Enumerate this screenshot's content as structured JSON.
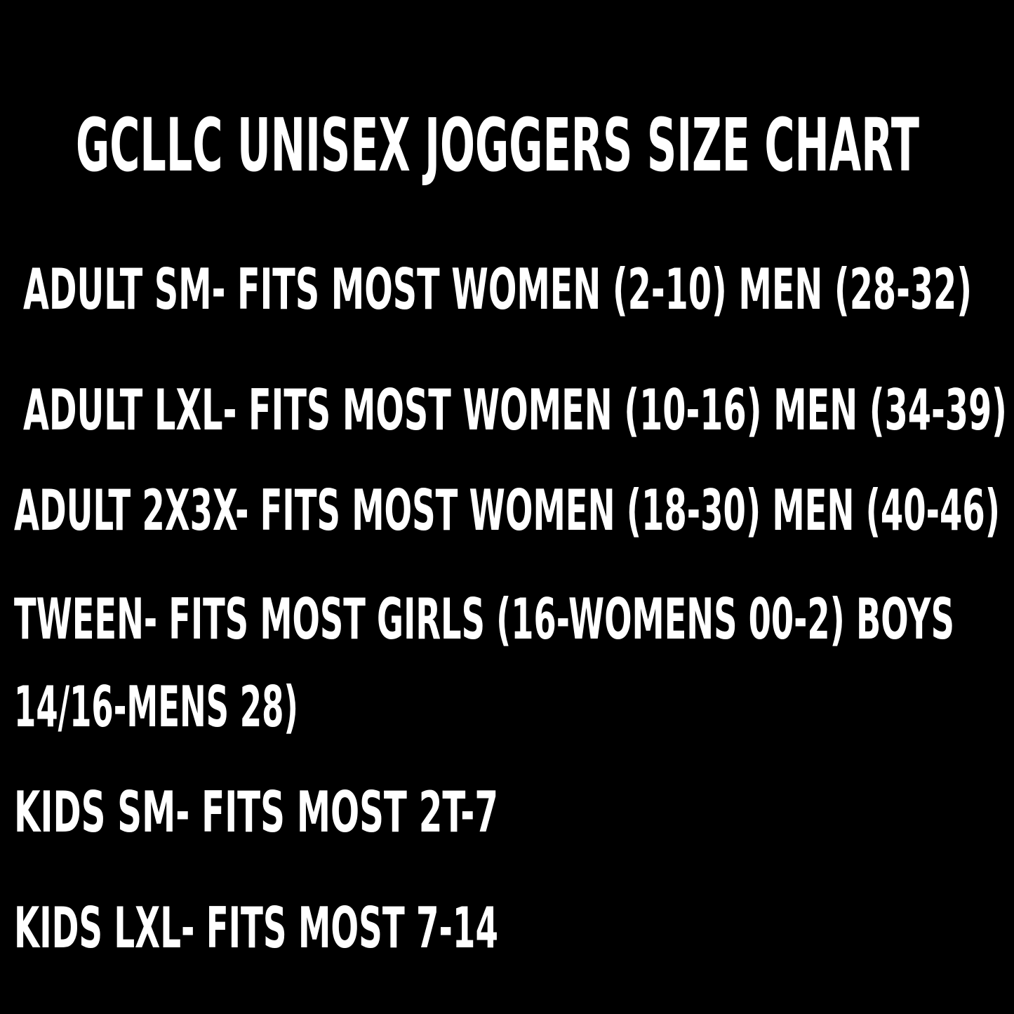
{
  "title": "GCLLC UNISEX JOGGERS SIZE CHART",
  "lines": [
    "ADULT SM- FITS MOST WOMEN (2-10) MEN (28-32)",
    "ADULT LXL- FITS MOST WOMEN (10-16) MEN (34-39)",
    "ADULT 2X3X- FITS MOST WOMEN (18-30) MEN (40-46)",
    "TWEEN- FITS MOST GIRLS (16-WOMENS 00-2) BOYS",
    "14/16-MENS 28)",
    "KIDS SM- FITS MOST 2T-7",
    "KIDS LXL- FITS MOST 7-14"
  ]
}
